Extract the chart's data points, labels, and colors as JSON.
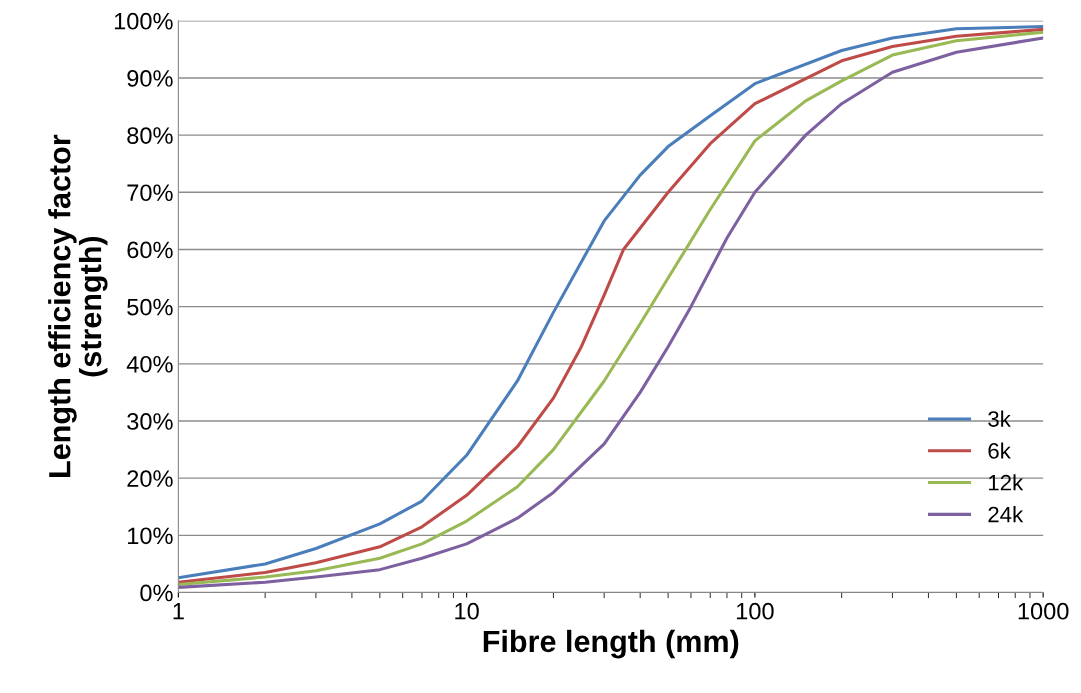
{
  "chart_data": {
    "type": "line",
    "xlabel": "Fibre length (mm)",
    "ylabel": "Length efficiency factor\n(strength)",
    "log": "x",
    "xlim": [
      1,
      1000
    ],
    "xticks": [
      1,
      10,
      100,
      1000
    ],
    "ylim": [
      0,
      100
    ],
    "yticks": [
      {
        "value": 0,
        "label": "0%"
      },
      {
        "value": 10,
        "label": "10%"
      },
      {
        "value": 20,
        "label": "20%"
      },
      {
        "value": 30,
        "label": "30%"
      },
      {
        "value": 40,
        "label": "40%"
      },
      {
        "value": 50,
        "label": "50%"
      },
      {
        "value": 60,
        "label": "60%"
      },
      {
        "value": 70,
        "label": "70%"
      },
      {
        "value": 80,
        "label": "80%"
      },
      {
        "value": 90,
        "label": "90%"
      },
      {
        "value": 100,
        "label": "100%"
      }
    ],
    "grid": "y",
    "legend": "bottom right",
    "marker": "none",
    "line_style": "solid",
    "series": [
      {
        "name": "3k",
        "color": "#4a7ebb",
        "x": [
          1,
          2,
          3,
          5,
          7,
          10,
          15,
          20,
          30,
          40,
          50,
          70,
          100,
          200,
          300,
          500,
          1000
        ],
        "values": [
          2.6,
          5,
          7.7,
          12,
          16,
          24,
          37,
          49,
          65,
          73,
          78,
          83.4,
          89,
          94.8,
          97,
          98.6,
          99
        ]
      },
      {
        "name": "6k",
        "color": "#be4b48",
        "x": [
          1,
          2,
          3,
          5,
          7,
          10,
          15,
          20,
          25,
          30,
          35,
          50,
          70,
          100,
          200,
          300,
          500,
          1000
        ],
        "values": [
          1.8,
          3.5,
          5.2,
          8,
          11.5,
          17,
          25.5,
          34,
          43,
          52,
          60,
          70,
          78.5,
          85.5,
          93,
          95.5,
          97.3,
          98.5
        ]
      },
      {
        "name": "12k",
        "color": "#98b954",
        "x": [
          1,
          2,
          3,
          5,
          7,
          10,
          15,
          20,
          30,
          40,
          50,
          70,
          100,
          150,
          200,
          300,
          500,
          1000
        ],
        "values": [
          1.4,
          2.7,
          3.8,
          6,
          8.5,
          12.5,
          18.5,
          25,
          37,
          47,
          55,
          67,
          79,
          86,
          89.5,
          94,
          96.5,
          98
        ]
      },
      {
        "name": "24k",
        "color": "#7d60a0",
        "x": [
          1,
          2,
          3,
          5,
          7,
          10,
          15,
          20,
          30,
          40,
          50,
          60,
          80,
          100,
          150,
          200,
          300,
          500,
          1000
        ],
        "values": [
          0.9,
          1.8,
          2.7,
          4,
          6,
          8.5,
          13,
          17.5,
          26,
          35,
          43,
          50,
          62,
          70,
          80,
          85.5,
          91,
          94.5,
          97
        ]
      }
    ]
  }
}
